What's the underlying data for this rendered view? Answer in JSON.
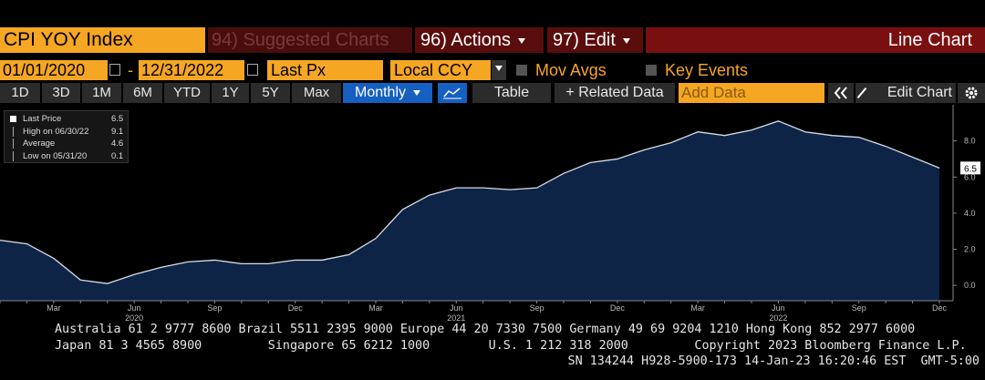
{
  "header": {
    "ticker": "CPI YOY Index",
    "suggested": "94) Suggested Charts",
    "actions": "96) Actions",
    "edit": "97) Edit",
    "view": "Line Chart"
  },
  "controls": {
    "start_date": "01/01/2020",
    "dash": "-",
    "end_date": "12/31/2022",
    "field": "Last Px",
    "currency": "Local CCY",
    "mov_avgs": "Mov Avgs",
    "key_events": "Key Events"
  },
  "toolbar": {
    "ranges": [
      "1D",
      "3D",
      "1M",
      "6M",
      "YTD",
      "1Y",
      "5Y",
      "Max"
    ],
    "period": "Monthly",
    "table": "Table",
    "related": "+ Related Data",
    "add_data": "Add Data",
    "edit_chart": "Edit Chart"
  },
  "chart_data": {
    "type": "line",
    "categories": [
      null,
      null,
      "Mar",
      null,
      null,
      "Jun",
      null,
      null,
      "Sep",
      null,
      null,
      "Dec",
      null,
      null,
      "Mar",
      null,
      null,
      "Jun",
      null,
      null,
      "Sep",
      null,
      null,
      "Dec",
      null,
      null,
      "Mar",
      null,
      null,
      "Jun",
      null,
      null,
      "Sep",
      null,
      null,
      "Dec"
    ],
    "years": [
      "2020",
      "2021",
      "2022"
    ],
    "series": [
      {
        "name": "Last Price",
        "color": "#d8dde6",
        "fill": "#0e2447",
        "values": [
          2.5,
          2.3,
          1.5,
          0.3,
          0.1,
          0.6,
          1.0,
          1.3,
          1.4,
          1.2,
          1.2,
          1.4,
          1.4,
          1.7,
          2.6,
          4.2,
          5.0,
          5.4,
          5.4,
          5.3,
          5.4,
          6.2,
          6.8,
          7.0,
          7.5,
          7.9,
          8.5,
          8.3,
          8.6,
          9.1,
          8.5,
          8.3,
          8.2,
          7.7,
          7.1,
          6.5
        ]
      }
    ],
    "legend": [
      {
        "label": "Last Price",
        "value": 6.5
      },
      {
        "label": "High on 06/30/22",
        "value": 9.1
      },
      {
        "label": "Average",
        "value": 4.6
      },
      {
        "label": "Low on 05/31/20",
        "value": 0.1
      }
    ],
    "ylim": [
      -0.85,
      10
    ],
    "yticks": [
      {
        "value": 0,
        "label": "0.0"
      },
      {
        "value": 2,
        "label": "2.0"
      },
      {
        "value": 4,
        "label": "4.0"
      },
      {
        "value": 6,
        "label": "6.0"
      },
      {
        "value": 8,
        "label": "8.0"
      }
    ]
  },
  "footer": [
    "Australia 61 2 9777 8600 Brazil 5511 2395 9000 Europe 44 20 7330 7500 Germany 49 69 9204 1210 Hong Kong 852 2977 6000",
    "Japan 81 3 4565 8900         Singapore 65 6212 1000        U.S. 1 212 318 2000         Copyright 2023 Bloomberg Finance L.P.",
    "SN 134244 H928-5900-173 14-Jan-23 16:20:46 EST  GMT-5:00"
  ]
}
